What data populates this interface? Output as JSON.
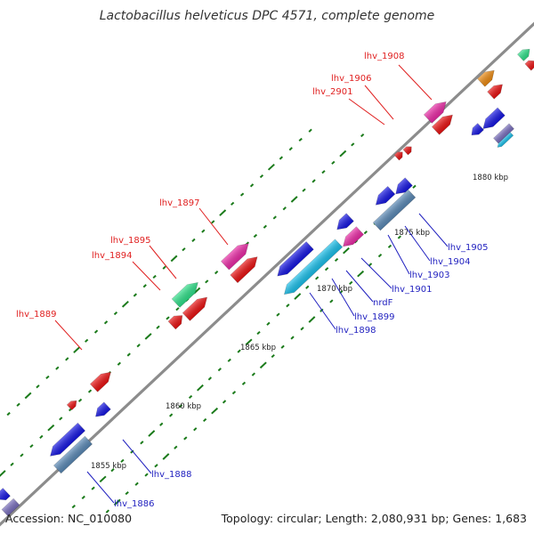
{
  "header": {
    "title": "Lactobacillus helveticus DPC 4571, complete genome"
  },
  "footer": {
    "accession": "Accession: NC_010080",
    "summary": "Topology: circular; Length: 2,080,931 bp; Genes: 1,683"
  },
  "colors": {
    "backbone": "#8c8c8c",
    "tick": "#1a7a1a",
    "label_red": "#e02020",
    "label_blue": "#1f1fbf",
    "red": "#ee1111",
    "blue": "#1515e6",
    "steel": "#5a8ab8",
    "cyan": "#19c2ee",
    "pink": "#ee2aa8",
    "green": "#2ee38a",
    "orange": "#f08c10",
    "purple": "#7a6fc0"
  },
  "scale": {
    "tick_labels": [
      {
        "kbp": 1855,
        "text": "1855 kbp"
      },
      {
        "kbp": 1860,
        "text": "1860 kbp"
      },
      {
        "kbp": 1865,
        "text": "1865 kbp"
      },
      {
        "kbp": 1870,
        "text": "1870 kbp"
      },
      {
        "kbp": 1875,
        "text": "1875 kbp"
      },
      {
        "kbp": 1880,
        "text": "1880 kbp"
      }
    ]
  },
  "gene_labels": [
    {
      "id": "lhv_1908",
      "text": "lhv_1908",
      "color": "label_red"
    },
    {
      "id": "lhv_1906",
      "text": "lhv_1906",
      "color": "label_red"
    },
    {
      "id": "lhv_2901",
      "text": "lhv_2901",
      "color": "label_red"
    },
    {
      "id": "lhv_1897",
      "text": "lhv_1897",
      "color": "label_red"
    },
    {
      "id": "lhv_1895",
      "text": "lhv_1895",
      "color": "label_red"
    },
    {
      "id": "lhv_1894",
      "text": "lhv_1894",
      "color": "label_red"
    },
    {
      "id": "lhv_1889",
      "text": "lhv_1889",
      "color": "label_red"
    },
    {
      "id": "lhv_1905",
      "text": "lhv_1905",
      "color": "label_blue"
    },
    {
      "id": "lhv_1904",
      "text": "lhv_1904",
      "color": "label_blue"
    },
    {
      "id": "lhv_1903",
      "text": "lhv_1903",
      "color": "label_blue"
    },
    {
      "id": "lhv_1901",
      "text": "lhv_1901",
      "color": "label_blue"
    },
    {
      "id": "nrdF",
      "text": "nrdF",
      "color": "label_blue"
    },
    {
      "id": "lhv_1899",
      "text": "lhv_1899",
      "color": "label_blue"
    },
    {
      "id": "lhv_1898",
      "text": "lhv_1898",
      "color": "label_blue"
    },
    {
      "id": "lhv_1888",
      "text": "lhv_1888",
      "color": "label_blue"
    },
    {
      "id": "lhv_1886",
      "text": "lhv_1886",
      "color": "label_blue"
    }
  ],
  "features": [
    {
      "id": "f_lhv1908",
      "color": "pink",
      "strand": "+"
    },
    {
      "id": "f_lhv1908b",
      "color": "red",
      "strand": "+"
    },
    {
      "id": "f_orange",
      "color": "orange",
      "strand": "+"
    },
    {
      "id": "f_red_top",
      "color": "red",
      "strand": "+"
    },
    {
      "id": "f_green_top",
      "color": "green",
      "strand": "+"
    },
    {
      "id": "f_red_corner",
      "color": "red",
      "strand": "+"
    },
    {
      "id": "f_lhv2901",
      "color": "red",
      "strand": "+"
    },
    {
      "id": "f_lhv1906",
      "color": "red",
      "strand": "+"
    },
    {
      "id": "f_blue_top1",
      "color": "blue",
      "strand": "-"
    },
    {
      "id": "f_blue_top2",
      "color": "blue",
      "strand": "-"
    },
    {
      "id": "f_purple",
      "color": "purple",
      "strand": "-"
    },
    {
      "id": "f_cyan_small",
      "color": "cyan",
      "strand": "-"
    },
    {
      "id": "f_lhv1897a",
      "color": "pink",
      "strand": "+"
    },
    {
      "id": "f_lhv1897b",
      "color": "red",
      "strand": "+"
    },
    {
      "id": "f_lhv1895",
      "color": "green",
      "strand": "+"
    },
    {
      "id": "f_lhv1894a",
      "color": "red",
      "strand": "+"
    },
    {
      "id": "f_lhv1894b",
      "color": "red",
      "strand": "+"
    },
    {
      "id": "f_lhv1889",
      "color": "red",
      "strand": "+"
    },
    {
      "id": "f_red_small",
      "color": "red",
      "strand": "+"
    },
    {
      "id": "f_lhv1905",
      "color": "blue",
      "strand": "-"
    },
    {
      "id": "f_lhv1904",
      "color": "blue",
      "strand": "-"
    },
    {
      "id": "f_lhv1903",
      "color": "steel",
      "strand": "-"
    },
    {
      "id": "f_lhv1901",
      "color": "pink",
      "strand": "-"
    },
    {
      "id": "f_nrdF",
      "color": "blue",
      "strand": "-"
    },
    {
      "id": "f_lhv1899",
      "color": "blue",
      "strand": "-"
    },
    {
      "id": "f_lhv1898",
      "color": "cyan",
      "strand": "-"
    },
    {
      "id": "f_lhv1888",
      "color": "blue",
      "strand": "-"
    },
    {
      "id": "f_lhv1886a",
      "color": "blue",
      "strand": "-"
    },
    {
      "id": "f_lhv1886b",
      "color": "steel",
      "strand": "-"
    },
    {
      "id": "f_blue_edge",
      "color": "blue",
      "strand": "-"
    },
    {
      "id": "f_grey_corner",
      "color": "purple",
      "strand": "-"
    }
  ]
}
